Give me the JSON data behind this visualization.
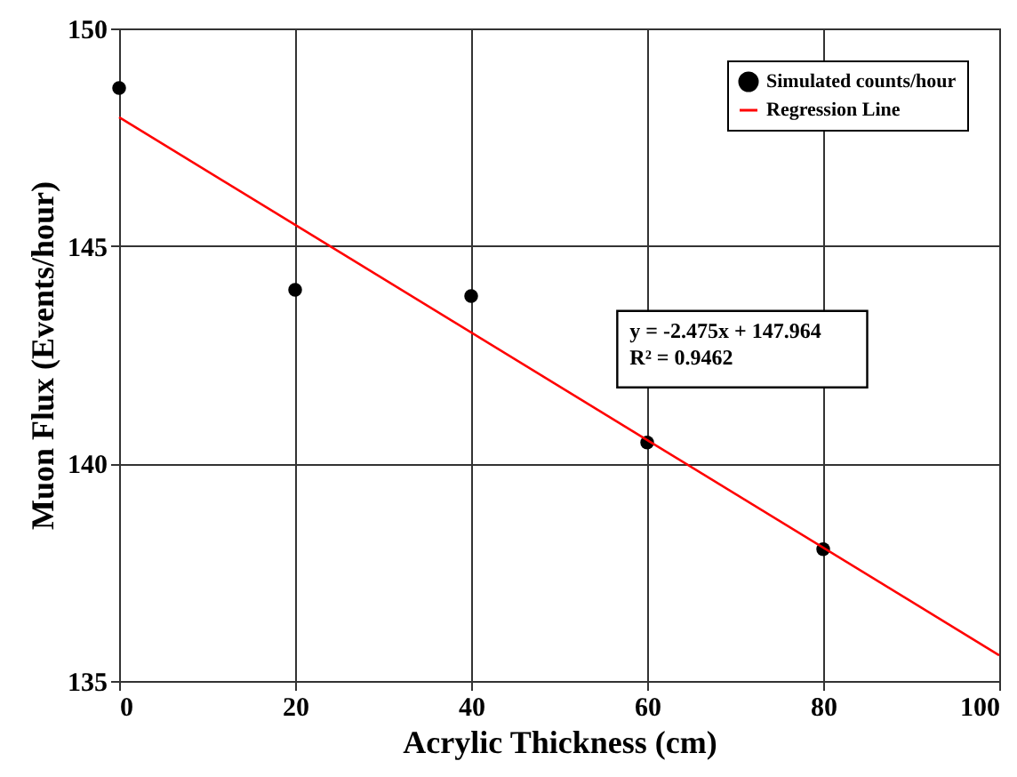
{
  "chart_data": {
    "type": "scatter",
    "xlabel": "Acrylic Thickness (cm)",
    "ylabel": "Muon Flux (Events/hour)",
    "series": [
      {
        "name": "Simulated counts/hour",
        "color": "#000000",
        "marker": "circle",
        "x": [
          0,
          20,
          40,
          60,
          80
        ],
        "values": [
          148.63,
          143.99,
          143.85,
          140.48,
          138.03
        ]
      },
      {
        "name": "Regression Line",
        "type": "line",
        "color": "#ff0000",
        "marker": "none",
        "line_style": "solid",
        "x": [
          0,
          100
        ],
        "values": [
          147.96,
          135.59
        ]
      }
    ],
    "annotations": [
      "y = -2.475x + 147.964",
      "R² = 0.9462"
    ],
    "xlim": [
      0,
      100
    ],
    "xticks": [
      0,
      20,
      40,
      60,
      80,
      100
    ],
    "ylim": [
      135,
      150
    ],
    "yticks": [
      135,
      140,
      145,
      150
    ],
    "grid": true,
    "legend": "top right"
  }
}
